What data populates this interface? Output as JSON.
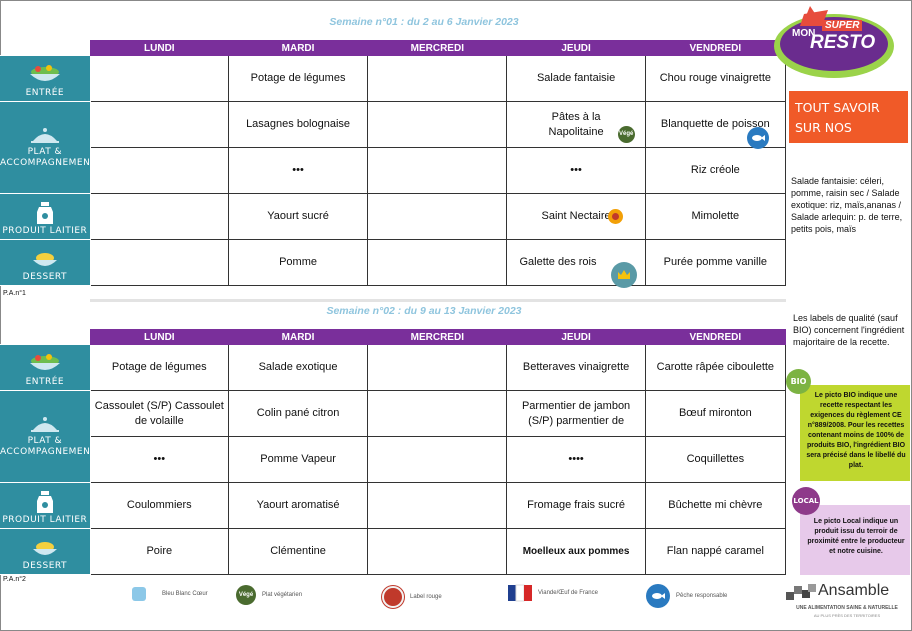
{
  "week1": {
    "title": "Semaine n°01 : du 2 au 6 Janvier 2023",
    "days": [
      "LUNDI",
      "MARDI",
      "MERCREDI",
      "JEUDI",
      "VENDREDI"
    ],
    "rows": [
      {
        "category": "ENTRÉE",
        "cells": [
          "",
          "Potage de légumes",
          "",
          "Salade fantaisie",
          "Chou rouge vinaigrette"
        ]
      },
      {
        "category": "PLAT & ACCOMPAGNEMENT",
        "cells": [
          "",
          "Lasagnes bolognaise",
          "",
          "Pâtes à la Napolitaine",
          "Blanquette de poisson"
        ]
      },
      {
        "category": "",
        "cells": [
          "",
          "•••",
          "",
          "•••",
          "Riz créole"
        ]
      },
      {
        "category": "PRODUIT LAITIER",
        "cells": [
          "",
          "Yaourt sucré",
          "",
          "Saint Nectaire",
          "Mimolette"
        ]
      },
      {
        "category": "DESSERT",
        "cells": [
          "",
          "Pomme",
          "",
          "Galette des rois",
          "Purée pomme vanille"
        ]
      }
    ],
    "pan": "P.A.n°1"
  },
  "week2": {
    "title": "Semaine n°02 : du 9 au 13 Janvier 2023",
    "days": [
      "LUNDI",
      "MARDI",
      "MERCREDI",
      "JEUDI",
      "VENDREDI"
    ],
    "rows": [
      {
        "category": "ENTRÉE",
        "cells": [
          "Potage de légumes",
          "Salade exotique",
          "",
          "Betteraves vinaigrette",
          "Carotte râpée ciboulette"
        ]
      },
      {
        "category": "PLAT & ACCOMPAGNEMENT",
        "cells": [
          "Cassoulet (S/P) Cassoulet de volaille",
          "Colin pané citron",
          "",
          "Parmentier de jambon (S/P) parmentier de",
          "Bœuf mironton"
        ]
      },
      {
        "category": "",
        "cells": [
          "•••",
          "Pomme Vapeur",
          "",
          "••••",
          "Coquillettes"
        ]
      },
      {
        "category": "PRODUIT LAITIER",
        "cells": [
          "Coulommiers",
          "Yaourt aromatisé",
          "",
          "Fromage frais sucré",
          "Bûchette mi chèvre"
        ]
      },
      {
        "category": "DESSERT",
        "cells": [
          "Poire",
          "Clémentine",
          "",
          "Moelleux aux pommes",
          "Flan nappé caramel"
        ]
      }
    ],
    "pan": "P.A.n°2"
  },
  "brand": {
    "logo_top": "MON",
    "logo_main": "SUPER",
    "logo_resto": "RESTO",
    "tagline": "TOUT SAVOIR SUR NOS RECETTES"
  },
  "salad_note": "Salade fantaisie: céleri, pomme, raisin sec / Salade exotique: riz, maïs,ananas / Salade arlequin: p. de terre, petits pois, maïs",
  "labels_note": "Les labels de qualité (sauf BIO) concernent l'ingrédient majoritaire de la recette.",
  "bio": {
    "badge": "BIO",
    "text": "Le picto BIO indique une recette respectant les exigences du règlement CE n°889/2008. Pour les recettes contenant moins de 100% de produits BIO, l'ingrédient BIO sera précisé dans le libellé du plat."
  },
  "local": {
    "badge": "LOCAL",
    "text": "Le picto Local indique un produit issu du terroir de proximité entre le producteur et notre cuisine."
  },
  "legend": [
    "Bleu Blanc Cœur",
    "Plat végétarien",
    "Label rouge",
    "Viande/Œuf de France",
    "Pêche responsable"
  ],
  "footer": {
    "company": "Ansamble",
    "slogan": "UNE ALIMENTATION SAINE & NATURELLE",
    "sub": "AU PLUS PRÈS DES TERRITOIRES"
  },
  "badges": {
    "vege": "Végé"
  },
  "colors": {
    "header": "#7a2f9b",
    "category": "#2f8ea0",
    "title": "#8fc5de",
    "bio": "#bfd72f",
    "local": "#e7c9ea",
    "tagline_bg": "#f05a28"
  }
}
